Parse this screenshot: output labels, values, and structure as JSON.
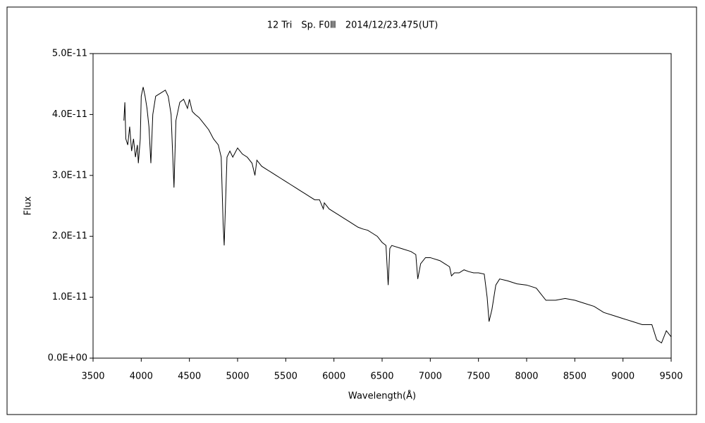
{
  "chart_data": {
    "type": "line",
    "title": "12 Tri　Sp. F0Ⅲ　2014/12/23.475(UT)",
    "x_label": "Wavelength(Å)",
    "y_label": "Flux",
    "color": "#000000",
    "grid": false,
    "xlim": [
      3500,
      9500
    ],
    "xticks": [
      3500,
      4000,
      4500,
      5000,
      5500,
      6000,
      6500,
      7000,
      7500,
      8000,
      8500,
      9000,
      9500
    ],
    "ylim": [
      0,
      5e-11
    ],
    "yticks": [
      {
        "value": 0,
        "label": "0.0E+00"
      },
      {
        "value": 1e-11,
        "label": "1.0E-11"
      },
      {
        "value": 2e-11,
        "label": "2.0E-11"
      },
      {
        "value": 3e-11,
        "label": "3.0E-11"
      },
      {
        "value": 4e-11,
        "label": "4.0E-11"
      },
      {
        "value": 5e-11,
        "label": "5.0E-11"
      }
    ],
    "x": [
      3820,
      3830,
      3840,
      3860,
      3880,
      3900,
      3920,
      3940,
      3960,
      3970,
      3990,
      4000,
      4020,
      4040,
      4060,
      4080,
      4100,
      4120,
      4150,
      4200,
      4250,
      4280,
      4310,
      4340,
      4360,
      4400,
      4440,
      4480,
      4500,
      4530,
      4560,
      4600,
      4650,
      4700,
      4750,
      4800,
      4830,
      4850,
      4861,
      4870,
      4890,
      4920,
      4950,
      5000,
      5050,
      5100,
      5150,
      5180,
      5200,
      5250,
      5300,
      5350,
      5400,
      5450,
      5500,
      5550,
      5600,
      5650,
      5700,
      5750,
      5800,
      5850,
      5890,
      5900,
      5950,
      6000,
      6050,
      6100,
      6150,
      6200,
      6250,
      6300,
      6350,
      6400,
      6450,
      6500,
      6540,
      6563,
      6580,
      6600,
      6700,
      6800,
      6850,
      6870,
      6900,
      6950,
      7000,
      7100,
      7150,
      7200,
      7220,
      7250,
      7300,
      7350,
      7400,
      7450,
      7500,
      7560,
      7590,
      7610,
      7640,
      7680,
      7720,
      7800,
      7900,
      8000,
      8100,
      8150,
      8200,
      8300,
      8400,
      8500,
      8600,
      8700,
      8800,
      8900,
      9000,
      9100,
      9200,
      9300,
      9350,
      9400,
      9450,
      9500
    ],
    "series": [
      {
        "name": "Flux",
        "values": [
          3.9e-11,
          4.2e-11,
          3.6e-11,
          3.5e-11,
          3.8e-11,
          3.4e-11,
          3.6e-11,
          3.3e-11,
          3.5e-11,
          3.2e-11,
          3.6e-11,
          4.3e-11,
          4.45e-11,
          4.3e-11,
          4.1e-11,
          3.8e-11,
          3.2e-11,
          4e-11,
          4.3e-11,
          4.35e-11,
          4.4e-11,
          4.3e-11,
          4e-11,
          2.8e-11,
          3.9e-11,
          4.2e-11,
          4.25e-11,
          4.1e-11,
          4.25e-11,
          4.05e-11,
          4e-11,
          3.95e-11,
          3.85e-11,
          3.75e-11,
          3.6e-11,
          3.5e-11,
          3.3e-11,
          2.2e-11,
          1.85e-11,
          2.3e-11,
          3.3e-11,
          3.4e-11,
          3.3e-11,
          3.45e-11,
          3.35e-11,
          3.3e-11,
          3.2e-11,
          3e-11,
          3.25e-11,
          3.15e-11,
          3.1e-11,
          3.05e-11,
          3e-11,
          2.95e-11,
          2.9e-11,
          2.85e-11,
          2.8e-11,
          2.75e-11,
          2.7e-11,
          2.65e-11,
          2.6e-11,
          2.6e-11,
          2.45e-11,
          2.55e-11,
          2.45e-11,
          2.4e-11,
          2.35e-11,
          2.3e-11,
          2.25e-11,
          2.2e-11,
          2.15e-11,
          2.12e-11,
          2.1e-11,
          2.05e-11,
          2e-11,
          1.9e-11,
          1.85e-11,
          1.2e-11,
          1.8e-11,
          1.85e-11,
          1.8e-11,
          1.75e-11,
          1.7e-11,
          1.3e-11,
          1.55e-11,
          1.65e-11,
          1.65e-11,
          1.6e-11,
          1.55e-11,
          1.5e-11,
          1.35e-11,
          1.4e-11,
          1.4e-11,
          1.45e-11,
          1.42e-11,
          1.4e-11,
          1.4e-11,
          1.38e-11,
          1e-11,
          6e-12,
          8e-12,
          1.2e-11,
          1.3e-11,
          1.27e-11,
          1.22e-11,
          1.2e-11,
          1.15e-11,
          1.05e-11,
          9.5e-12,
          9.5e-12,
          9.8e-12,
          9.5e-12,
          9e-12,
          8.5e-12,
          7.5e-12,
          7e-12,
          6.5e-12,
          6e-12,
          5.5e-12,
          5.5e-12,
          3e-12,
          2.5e-12,
          4.5e-12,
          3.5e-12
        ]
      }
    ]
  }
}
